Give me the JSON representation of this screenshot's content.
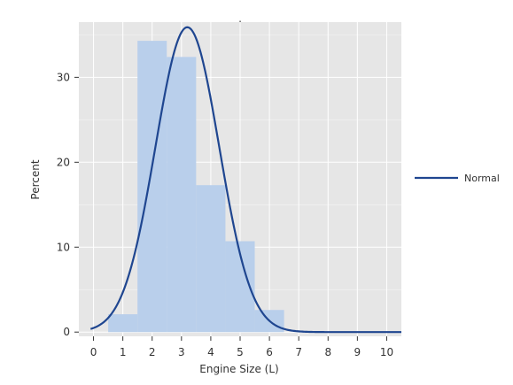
{
  "chart_data": {
    "type": "bar",
    "title": "'",
    "xlabel": "Engine Size (L)",
    "ylabel": "Percent",
    "xlim": [
      -0.5,
      10.5
    ],
    "ylim": [
      -0.5,
      36.5
    ],
    "x_ticks": [
      "0",
      "1",
      "2",
      "3",
      "4",
      "5",
      "6",
      "7",
      "8",
      "9",
      "10"
    ],
    "y_ticks": [
      "0",
      "10",
      "20",
      "30"
    ],
    "grid": true,
    "bins": [
      {
        "x0": 0.5,
        "x1": 1.5,
        "value": 2.1
      },
      {
        "x0": 1.5,
        "x1": 2.5,
        "value": 34.3
      },
      {
        "x0": 2.5,
        "x1": 3.5,
        "value": 32.4
      },
      {
        "x0": 3.5,
        "x1": 4.5,
        "value": 17.3
      },
      {
        "x0": 4.5,
        "x1": 5.5,
        "value": 10.7
      },
      {
        "x0": 5.5,
        "x1": 6.5,
        "value": 2.6
      }
    ],
    "normal_curve": {
      "name": "Normal",
      "mean": 3.2,
      "sd": 1.09,
      "peak": 35.9,
      "x_range": [
        -0.1,
        10.5
      ]
    },
    "legend": {
      "entries": [
        "Normal"
      ],
      "position": "right"
    },
    "colors": {
      "bars": "#b9cfeb",
      "curve": "#1f4690",
      "plot_bg": "#e6e6e6",
      "grid": "#ffffff"
    }
  }
}
